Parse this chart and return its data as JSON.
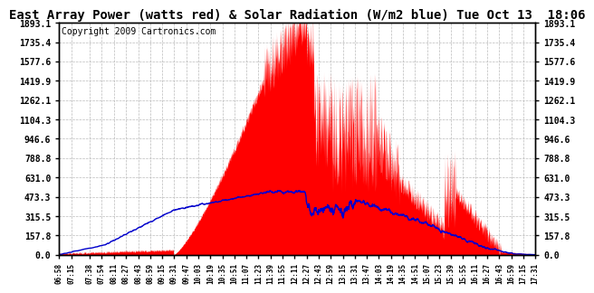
{
  "title": "East Array Power (watts red) & Solar Radiation (W/m2 blue) Tue Oct 13  18:06",
  "copyright": "Copyright 2009 Cartronics.com",
  "y_ticks": [
    0.0,
    157.8,
    315.5,
    473.3,
    631.0,
    788.8,
    946.6,
    1104.3,
    1262.1,
    1419.9,
    1577.6,
    1735.4,
    1893.1
  ],
  "y_max": 1893.1,
  "y_min": 0.0,
  "bg_color": "#ffffff",
  "plot_bg_color": "#ffffff",
  "red_color": "#ff0000",
  "blue_color": "#0000cc",
  "grid_color": "#bbbbbb",
  "title_fontsize": 10,
  "copyright_fontsize": 7,
  "time_labels": [
    "06:58",
    "07:15",
    "07:38",
    "07:54",
    "08:11",
    "08:27",
    "08:43",
    "08:59",
    "09:15",
    "09:31",
    "09:47",
    "10:03",
    "10:19",
    "10:35",
    "10:51",
    "11:07",
    "11:23",
    "11:39",
    "11:55",
    "12:11",
    "12:27",
    "12:43",
    "12:59",
    "13:15",
    "13:31",
    "13:47",
    "14:03",
    "14:19",
    "14:35",
    "14:51",
    "15:07",
    "15:23",
    "15:39",
    "15:55",
    "16:11",
    "16:27",
    "16:43",
    "16:59",
    "17:15",
    "17:31"
  ]
}
